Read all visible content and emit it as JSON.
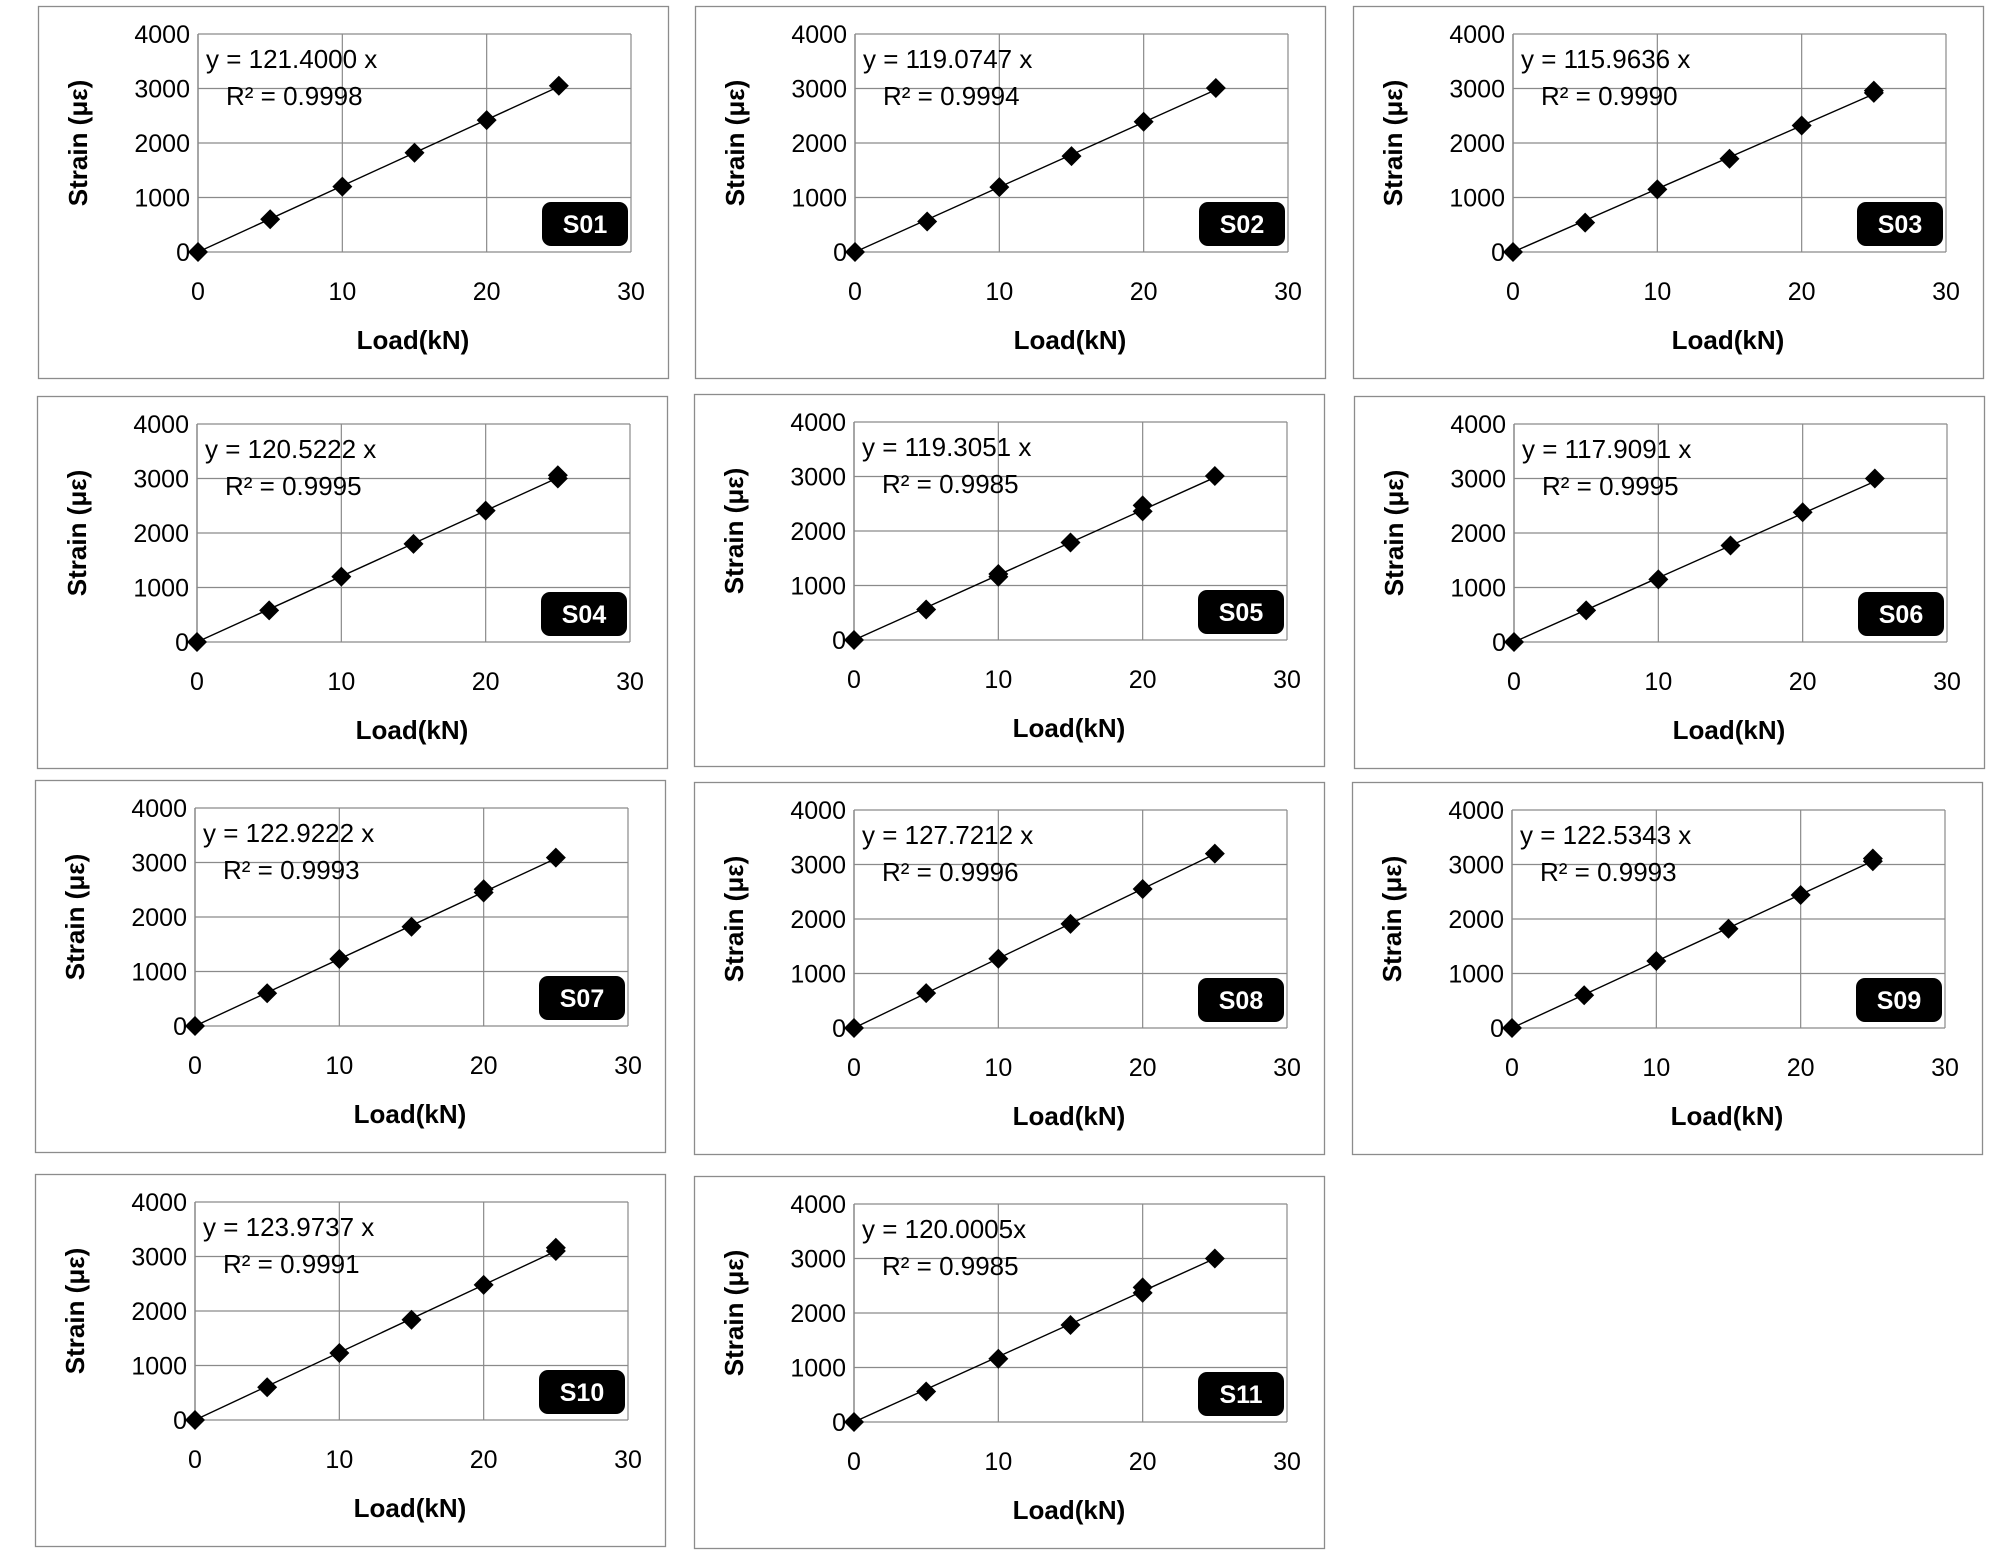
{
  "chart_data": [
    {
      "type": "scatter",
      "label": "S01",
      "equation": "y = 121.4000 x",
      "r2": "R² = 0.9998",
      "xlabel": "Load(kN)",
      "ylabel": "Strain (με)",
      "xlim": [
        0,
        30
      ],
      "ylim": [
        0,
        4000
      ],
      "xticks": [
        0,
        10,
        20,
        30
      ],
      "yticks": [
        0,
        1000,
        2000,
        3000,
        4000
      ],
      "slope": 121.4,
      "grid": "horizontal and vertical",
      "points": [
        {
          "x": 0,
          "y": 0
        },
        {
          "x": 5,
          "y": 600
        },
        {
          "x": 10,
          "y": 1200
        },
        {
          "x": 15,
          "y": 1820
        },
        {
          "x": 20,
          "y": 2420
        },
        {
          "x": 25,
          "y": 3050
        }
      ]
    },
    {
      "type": "scatter",
      "label": "S02",
      "equation": "y = 119.0747 x",
      "r2": "R² = 0.9994",
      "xlabel": "Load(kN)",
      "ylabel": "Strain (με)",
      "xlim": [
        0,
        30
      ],
      "ylim": [
        0,
        4000
      ],
      "xticks": [
        0,
        10,
        20,
        30
      ],
      "yticks": [
        0,
        1000,
        2000,
        3000,
        4000
      ],
      "slope": 119.0747,
      "grid": "horizontal and vertical",
      "points": [
        {
          "x": 0,
          "y": 0
        },
        {
          "x": 5,
          "y": 560
        },
        {
          "x": 10,
          "y": 1190
        },
        {
          "x": 15,
          "y": 1760
        },
        {
          "x": 20,
          "y": 2390
        },
        {
          "x": 25,
          "y": 3010
        }
      ]
    },
    {
      "type": "scatter",
      "label": "S03",
      "equation": "y = 115.9636 x",
      "r2": "R² = 0.9990",
      "xlabel": "Load(kN)",
      "ylabel": "Strain (με)",
      "xlim": [
        0,
        30
      ],
      "ylim": [
        0,
        4000
      ],
      "xticks": [
        0,
        10,
        20,
        30
      ],
      "yticks": [
        0,
        1000,
        2000,
        3000,
        4000
      ],
      "slope": 115.9636,
      "grid": "horizontal and vertical",
      "points": [
        {
          "x": 0,
          "y": 0
        },
        {
          "x": 5,
          "y": 540
        },
        {
          "x": 10,
          "y": 1150
        },
        {
          "x": 15,
          "y": 1710
        },
        {
          "x": 20,
          "y": 2320
        },
        {
          "x": 25,
          "y": 2920
        },
        {
          "x": 25,
          "y": 2960
        }
      ]
    },
    {
      "type": "scatter",
      "label": "S04",
      "equation": "y = 120.5222 x",
      "r2": "R² = 0.9995",
      "xlabel": "Load(kN)",
      "ylabel": "Strain (με)",
      "xlim": [
        0,
        30
      ],
      "ylim": [
        0,
        4000
      ],
      "xticks": [
        0,
        10,
        20,
        30
      ],
      "yticks": [
        0,
        1000,
        2000,
        3000,
        4000
      ],
      "slope": 120.5222,
      "grid": "horizontal and vertical",
      "points": [
        {
          "x": 0,
          "y": 0
        },
        {
          "x": 5,
          "y": 580
        },
        {
          "x": 10,
          "y": 1200
        },
        {
          "x": 15,
          "y": 1800
        },
        {
          "x": 20,
          "y": 2410
        },
        {
          "x": 25,
          "y": 3000
        },
        {
          "x": 25,
          "y": 3060
        }
      ]
    },
    {
      "type": "scatter",
      "label": "S05",
      "equation": "y = 119.3051 x",
      "r2": "R² = 0.9985",
      "xlabel": "Load(kN)",
      "ylabel": "Strain (με)",
      "xlim": [
        0,
        30
      ],
      "ylim": [
        0,
        4000
      ],
      "xticks": [
        0,
        10,
        20,
        30
      ],
      "yticks": [
        0,
        1000,
        2000,
        3000,
        4000
      ],
      "slope": 119.3051,
      "grid": "horizontal and vertical",
      "points": [
        {
          "x": 0,
          "y": 0
        },
        {
          "x": 5,
          "y": 560
        },
        {
          "x": 10,
          "y": 1160
        },
        {
          "x": 10,
          "y": 1210
        },
        {
          "x": 15,
          "y": 1790
        },
        {
          "x": 20,
          "y": 2360
        },
        {
          "x": 20,
          "y": 2470
        },
        {
          "x": 25,
          "y": 3010
        }
      ]
    },
    {
      "type": "scatter",
      "label": "S06",
      "equation": "y = 117.9091 x",
      "r2": "R² = 0.9995",
      "xlabel": "Load(kN)",
      "ylabel": "Strain (με)",
      "xlim": [
        0,
        30
      ],
      "ylim": [
        0,
        4000
      ],
      "xticks": [
        0,
        10,
        20,
        30
      ],
      "yticks": [
        0,
        1000,
        2000,
        3000,
        4000
      ],
      "slope": 117.9091,
      "grid": "horizontal and vertical",
      "points": [
        {
          "x": 0,
          "y": 0
        },
        {
          "x": 5,
          "y": 580
        },
        {
          "x": 10,
          "y": 1150
        },
        {
          "x": 15,
          "y": 1770
        },
        {
          "x": 20,
          "y": 2380
        },
        {
          "x": 25,
          "y": 3000
        }
      ]
    },
    {
      "type": "scatter",
      "label": "S07",
      "equation": "y = 122.9222 x",
      "r2": "R² = 0.9993",
      "xlabel": "Load(kN)",
      "ylabel": "Strain (με)",
      "xlim": [
        0,
        30
      ],
      "ylim": [
        0,
        4000
      ],
      "xticks": [
        0,
        10,
        20,
        30
      ],
      "yticks": [
        0,
        1000,
        2000,
        3000,
        4000
      ],
      "slope": 122.9222,
      "grid": "horizontal and vertical",
      "points": [
        {
          "x": 0,
          "y": 0
        },
        {
          "x": 5,
          "y": 600
        },
        {
          "x": 10,
          "y": 1230
        },
        {
          "x": 15,
          "y": 1820
        },
        {
          "x": 20,
          "y": 2450
        },
        {
          "x": 20,
          "y": 2510
        },
        {
          "x": 25,
          "y": 3090
        }
      ]
    },
    {
      "type": "scatter",
      "label": "S08",
      "equation": "y = 127.7212 x",
      "r2": "R² = 0.9996",
      "xlabel": "Load(kN)",
      "ylabel": "Strain (με)",
      "xlim": [
        0,
        30
      ],
      "ylim": [
        0,
        4000
      ],
      "xticks": [
        0,
        10,
        20,
        30
      ],
      "yticks": [
        0,
        1000,
        2000,
        3000,
        4000
      ],
      "slope": 127.7212,
      "grid": "horizontal and vertical",
      "points": [
        {
          "x": 0,
          "y": 0
        },
        {
          "x": 5,
          "y": 640
        },
        {
          "x": 10,
          "y": 1270
        },
        {
          "x": 15,
          "y": 1910
        },
        {
          "x": 20,
          "y": 2550
        },
        {
          "x": 25,
          "y": 3200
        }
      ]
    },
    {
      "type": "scatter",
      "label": "S09",
      "equation": "y = 122.5343 x",
      "r2": "R² = 0.9993",
      "xlabel": "Load(kN)",
      "ylabel": "Strain (με)",
      "xlim": [
        0,
        30
      ],
      "ylim": [
        0,
        4000
      ],
      "xticks": [
        0,
        10,
        20,
        30
      ],
      "yticks": [
        0,
        1000,
        2000,
        3000,
        4000
      ],
      "slope": 122.5343,
      "grid": "horizontal and vertical",
      "points": [
        {
          "x": 0,
          "y": 0
        },
        {
          "x": 5,
          "y": 600
        },
        {
          "x": 10,
          "y": 1230
        },
        {
          "x": 15,
          "y": 1820
        },
        {
          "x": 20,
          "y": 2440
        },
        {
          "x": 25,
          "y": 3060
        },
        {
          "x": 25,
          "y": 3110
        }
      ]
    },
    {
      "type": "scatter",
      "label": "S10",
      "equation": "y = 123.9737 x",
      "r2": "R² = 0.9991",
      "xlabel": "Load(kN)",
      "ylabel": "Strain (με)",
      "xlim": [
        0,
        30
      ],
      "ylim": [
        0,
        4000
      ],
      "xticks": [
        0,
        10,
        20,
        30
      ],
      "yticks": [
        0,
        1000,
        2000,
        3000,
        4000
      ],
      "slope": 123.9737,
      "grid": "horizontal and vertical",
      "points": [
        {
          "x": 0,
          "y": 0
        },
        {
          "x": 5,
          "y": 600
        },
        {
          "x": 10,
          "y": 1230
        },
        {
          "x": 15,
          "y": 1840
        },
        {
          "x": 20,
          "y": 2480
        },
        {
          "x": 25,
          "y": 3100
        },
        {
          "x": 25,
          "y": 3160
        }
      ]
    },
    {
      "type": "scatter",
      "label": "S11",
      "equation": "y = 120.0005x",
      "r2": "R² = 0.9985",
      "xlabel": "Load(kN)",
      "ylabel": "Strain (με)",
      "xlim": [
        0,
        30
      ],
      "ylim": [
        0,
        4000
      ],
      "xticks": [
        0,
        10,
        20,
        30
      ],
      "yticks": [
        0,
        1000,
        2000,
        3000,
        4000
      ],
      "slope": 120.0005,
      "grid": "horizontal and vertical",
      "points": [
        {
          "x": 0,
          "y": 0
        },
        {
          "x": 5,
          "y": 560
        },
        {
          "x": 10,
          "y": 1160
        },
        {
          "x": 15,
          "y": 1780
        },
        {
          "x": 20,
          "y": 2370
        },
        {
          "x": 20,
          "y": 2470
        },
        {
          "x": 25,
          "y": 3000
        }
      ]
    }
  ]
}
